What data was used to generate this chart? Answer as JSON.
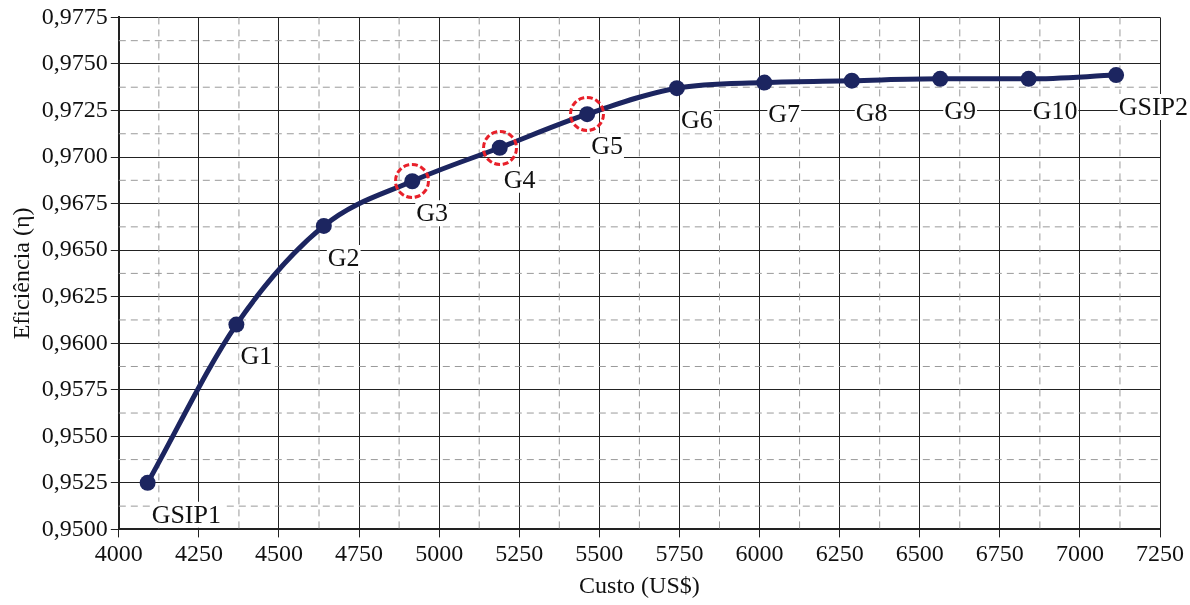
{
  "chart_data": {
    "type": "line",
    "xlabel": "Custo (US$)",
    "ylabel": "Eficiência (η)",
    "x": [
      4090,
      4367,
      4640,
      4916,
      5189,
      5462,
      5742,
      6015,
      6288,
      6564,
      6840,
      7113
    ],
    "series": [
      {
        "color": "#1c2560",
        "values": [
          0.9525,
          0.961,
          0.9663,
          0.9687,
          0.9705,
          0.9723,
          0.9737,
          0.974,
          0.9741,
          0.9742,
          0.9742,
          0.9744
        ]
      }
    ],
    "xlim": [
      4000,
      7250
    ],
    "xticks": [
      4000,
      4250,
      4500,
      4750,
      5000,
      5250,
      5500,
      5750,
      6000,
      6250,
      6500,
      6750,
      7000,
      7250
    ],
    "ylim": [
      0.95,
      0.9775
    ],
    "yticks": [
      {
        "value": 0.95,
        "label": "0,9500"
      },
      {
        "value": 0.9525,
        "label": "0,9525"
      },
      {
        "value": 0.955,
        "label": "0,9550"
      },
      {
        "value": 0.9575,
        "label": "0,9575"
      },
      {
        "value": 0.96,
        "label": "0,9600"
      },
      {
        "value": 0.9625,
        "label": "0,9625"
      },
      {
        "value": 0.965,
        "label": "0,9650"
      },
      {
        "value": 0.9675,
        "label": "0,9675"
      },
      {
        "value": 0.97,
        "label": "0,9700"
      },
      {
        "value": 0.9725,
        "label": "0,9725"
      },
      {
        "value": 0.975,
        "label": "0,9750"
      },
      {
        "value": 0.9775,
        "label": "0,9775"
      }
    ],
    "grid": true,
    "marker": "circle",
    "line_style": "solid",
    "legend": false,
    "annotations": [
      {
        "text": "GSIP1",
        "x": 4090,
        "y": 0.9525
      },
      {
        "text": "G1",
        "x": 4367,
        "y": 0.961
      },
      {
        "text": "G2",
        "x": 4640,
        "y": 0.9663
      },
      {
        "text": "G3",
        "x": 4916,
        "y": 0.9687
      },
      {
        "text": "G4",
        "x": 5189,
        "y": 0.9705
      },
      {
        "text": "G5",
        "x": 5462,
        "y": 0.9723
      },
      {
        "text": "G6",
        "x": 5742,
        "y": 0.9737
      },
      {
        "text": "G7",
        "x": 6015,
        "y": 0.974
      },
      {
        "text": "G8",
        "x": 6288,
        "y": 0.9741
      },
      {
        "text": "G9",
        "x": 6564,
        "y": 0.9742
      },
      {
        "text": "G10",
        "x": 6840,
        "y": 0.9742
      },
      {
        "text": "GSIP2",
        "x": 7113,
        "y": 0.9744
      }
    ]
  }
}
